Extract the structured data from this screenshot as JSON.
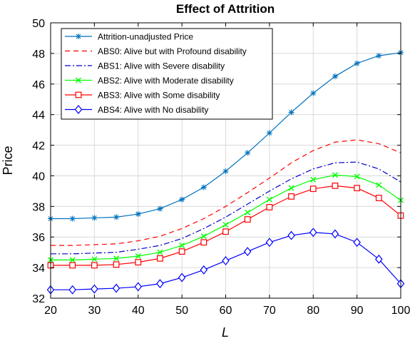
{
  "chart_data": {
    "type": "line",
    "title": "Effect of Attrition",
    "xlabel": "L",
    "ylabel": "Price",
    "xlim": [
      20,
      100
    ],
    "ylim": [
      32,
      50
    ],
    "xticks": [
      20,
      30,
      40,
      50,
      60,
      70,
      80,
      90,
      100
    ],
    "yticks": [
      32,
      34,
      36,
      38,
      40,
      42,
      44,
      46,
      48,
      50
    ],
    "grid": true,
    "legend_position": "top-left",
    "series": [
      {
        "name": "Attrition-unadjusted Price",
        "color": "#0072BD",
        "line": "solid",
        "marker": "asterisk",
        "x": [
          20,
          25,
          30,
          35,
          40,
          45,
          50,
          55,
          60,
          65,
          70,
          75,
          80,
          85,
          90,
          95,
          100
        ],
        "y": [
          37.2,
          37.2,
          37.25,
          37.3,
          37.5,
          37.85,
          38.45,
          39.25,
          40.3,
          41.5,
          42.8,
          44.15,
          45.4,
          46.5,
          47.35,
          47.85,
          48.05
        ]
      },
      {
        "name": "ABS0: Alive but with Profound disability",
        "color": "#FF0000",
        "line": "dashed",
        "marker": "none",
        "x": [
          20,
          25,
          30,
          35,
          40,
          45,
          50,
          55,
          60,
          65,
          70,
          75,
          80,
          85,
          90,
          95,
          100
        ],
        "y": [
          35.45,
          35.45,
          35.5,
          35.55,
          35.75,
          36.05,
          36.55,
          37.2,
          38.0,
          38.9,
          39.85,
          40.85,
          41.65,
          42.2,
          42.35,
          42.1,
          41.5
        ]
      },
      {
        "name": "ABS1: Alive with Severe disability",
        "color": "#0000CC",
        "line": "dashdot",
        "marker": "none",
        "x": [
          20,
          25,
          30,
          35,
          40,
          45,
          50,
          55,
          60,
          65,
          70,
          75,
          80,
          85,
          90,
          95,
          100
        ],
        "y": [
          34.9,
          34.9,
          34.95,
          35.0,
          35.2,
          35.45,
          35.9,
          36.55,
          37.3,
          38.15,
          39.0,
          39.8,
          40.45,
          40.85,
          40.9,
          40.45,
          39.6
        ]
      },
      {
        "name": "ABS2: Alive with Moderate disability",
        "color": "#00FF00",
        "line": "solid",
        "marker": "x",
        "x": [
          20,
          25,
          30,
          35,
          40,
          45,
          50,
          55,
          60,
          65,
          70,
          75,
          80,
          85,
          90,
          95,
          100
        ],
        "y": [
          34.5,
          34.5,
          34.55,
          34.6,
          34.75,
          35.0,
          35.45,
          36.05,
          36.8,
          37.6,
          38.45,
          39.2,
          39.75,
          40.05,
          39.95,
          39.4,
          38.4
        ]
      },
      {
        "name": "ABS3: Alive with Some disability",
        "color": "#FF0000",
        "line": "solid",
        "marker": "square",
        "x": [
          20,
          25,
          30,
          35,
          40,
          45,
          50,
          55,
          60,
          65,
          70,
          75,
          80,
          85,
          90,
          95,
          100
        ],
        "y": [
          34.15,
          34.15,
          34.15,
          34.2,
          34.35,
          34.6,
          35.05,
          35.65,
          36.35,
          37.15,
          37.95,
          38.65,
          39.15,
          39.35,
          39.2,
          38.55,
          37.4
        ]
      },
      {
        "name": "ABS4: Alive with No disability",
        "color": "#0000FF",
        "line": "solid",
        "marker": "diamond",
        "x": [
          20,
          25,
          30,
          35,
          40,
          45,
          50,
          55,
          60,
          65,
          70,
          75,
          80,
          85,
          90,
          95,
          100
        ],
        "y": [
          32.55,
          32.55,
          32.6,
          32.65,
          32.75,
          32.95,
          33.35,
          33.85,
          34.45,
          35.05,
          35.65,
          36.1,
          36.3,
          36.2,
          35.65,
          34.55,
          32.95
        ]
      }
    ]
  }
}
